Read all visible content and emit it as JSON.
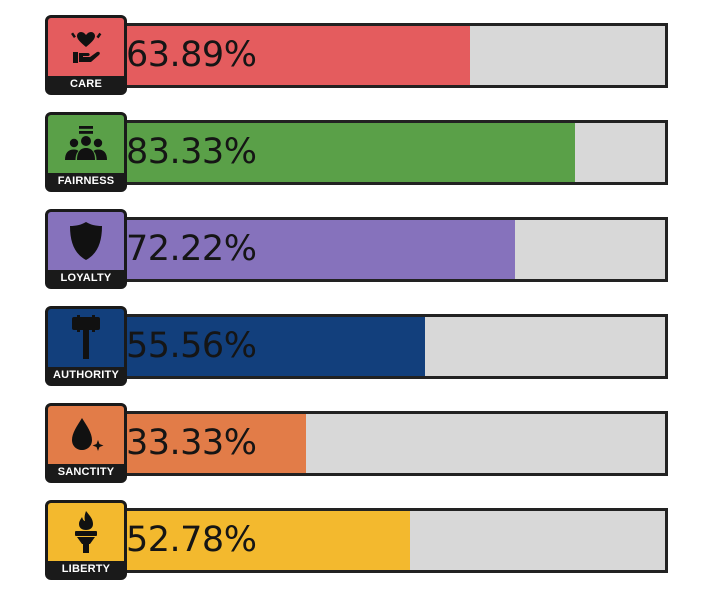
{
  "chart_data": {
    "type": "bar",
    "orientation": "horizontal",
    "categories": [
      "CARE",
      "FAIRNESS",
      "LOYALTY",
      "AUTHORITY",
      "SANCTITY",
      "LIBERTY"
    ],
    "values": [
      63.89,
      83.33,
      72.22,
      55.56,
      33.33,
      52.78
    ],
    "value_labels": [
      "63.89%",
      "83.33%",
      "72.22%",
      "55.56%",
      "33.33%",
      "52.78%"
    ],
    "colors": [
      "#e45c5e",
      "#5aa048",
      "#8672bc",
      "#123f7c",
      "#e27c48",
      "#f3b92e"
    ],
    "icons": [
      "heart-hand-icon",
      "people-group-icon",
      "shield-icon",
      "gavel-icon",
      "drop-sparkle-icon",
      "torch-icon"
    ],
    "xlim": [
      0,
      100
    ],
    "track_color": "#d8d8d8",
    "grid": false,
    "legend": "none"
  }
}
